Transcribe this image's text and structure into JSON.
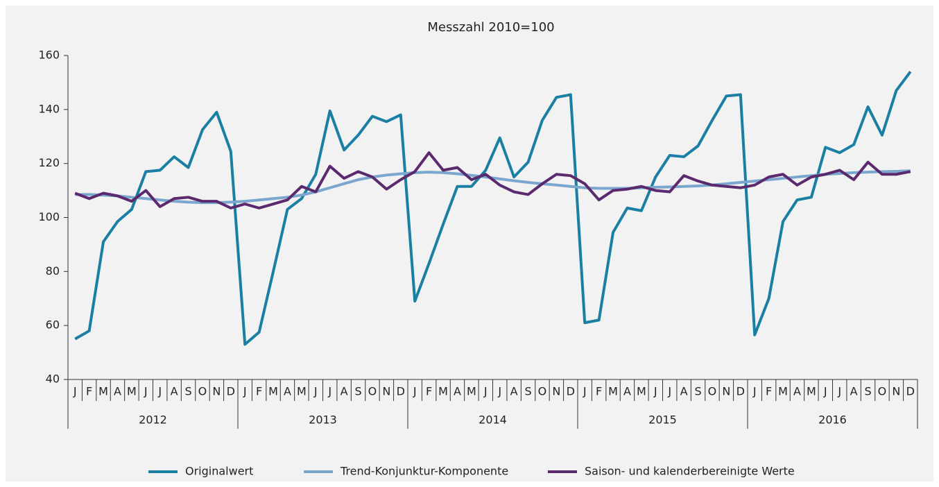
{
  "chart_data": {
    "type": "line",
    "title": "Messzahl 2010=100",
    "categories": [
      "J",
      "F",
      "M",
      "A",
      "M",
      "J",
      "J",
      "A",
      "S",
      "O",
      "N",
      "D",
      "J",
      "F",
      "M",
      "A",
      "M",
      "J",
      "J",
      "A",
      "S",
      "O",
      "N",
      "D",
      "J",
      "F",
      "M",
      "A",
      "M",
      "J",
      "J",
      "A",
      "S",
      "O",
      "N",
      "D",
      "J",
      "F",
      "M",
      "A",
      "M",
      "J",
      "J",
      "A",
      "S",
      "O",
      "N",
      "D",
      "J",
      "F",
      "M",
      "A",
      "M",
      "J",
      "J",
      "A",
      "S",
      "O",
      "N",
      "D"
    ],
    "groups": [
      "2012",
      "2013",
      "2014",
      "2015",
      "2016"
    ],
    "series": [
      {
        "name": "Originalwert",
        "color": "#1b7fa3",
        "values": [
          55,
          58,
          91,
          98.5,
          103,
          117,
          117.5,
          122.5,
          118.5,
          132.5,
          139,
          124.5,
          53,
          57.5,
          80,
          103,
          107,
          116,
          139.5,
          125,
          130.5,
          137.5,
          135.5,
          138,
          69,
          83,
          97.5,
          111.5,
          111.5,
          117.5,
          129.5,
          115,
          120.5,
          136,
          144.5,
          145.5,
          61,
          62,
          94.5,
          103.5,
          102.5,
          115,
          123,
          122.5,
          126.5,
          136,
          145,
          145.5,
          56.5,
          70,
          98.5,
          106.5,
          107.5,
          126,
          124,
          127,
          141,
          130.5,
          147,
          154
        ]
      },
      {
        "name": "Trend-Konjunktur-Komponente",
        "color": "#7ba7cf",
        "values": [
          108.5,
          108.5,
          108.3,
          108,
          107.5,
          107,
          106.5,
          106,
          105.7,
          105.5,
          105.5,
          105.7,
          106,
          106.5,
          107,
          107.5,
          108.3,
          109.5,
          111,
          112.5,
          114,
          115,
          115.7,
          116.2,
          116.6,
          116.8,
          116.6,
          116.2,
          115.6,
          115,
          114.3,
          113.6,
          113,
          112.5,
          112,
          111.5,
          111,
          110.8,
          110.8,
          110.8,
          111,
          111.2,
          111.3,
          111.5,
          111.7,
          112,
          112.5,
          113,
          113.5,
          114,
          114.5,
          115,
          115.5,
          116,
          116.3,
          116.6,
          116.8,
          117,
          117.1,
          117.3
        ]
      },
      {
        "name": "Saison- und kalenderbereinigte Werte",
        "color": "#5b2a6e",
        "values": [
          109,
          107,
          109,
          108,
          106,
          110,
          104,
          107,
          107.5,
          106,
          106,
          103.5,
          105,
          103.5,
          105,
          106.5,
          111.5,
          109.5,
          119,
          114.5,
          117,
          115,
          110.5,
          114,
          117,
          124,
          117.5,
          118.5,
          114,
          116,
          112,
          109.5,
          108.5,
          112.5,
          116,
          115.5,
          112.5,
          106.5,
          110,
          110.5,
          111.5,
          110,
          109.5,
          115.5,
          113.5,
          112,
          111.5,
          111,
          112,
          115,
          116,
          112,
          115,
          116,
          117.5,
          114,
          120.5,
          116,
          116,
          117
        ]
      }
    ],
    "ylim": [
      40,
      160
    ],
    "yticks": [
      40,
      60,
      80,
      100,
      120,
      140,
      160
    ],
    "grid": false
  }
}
